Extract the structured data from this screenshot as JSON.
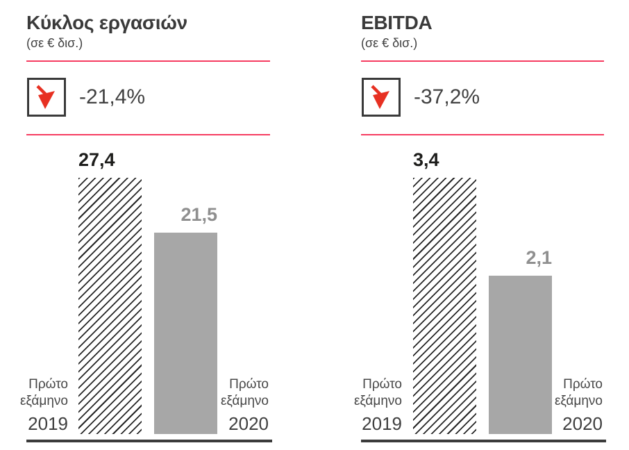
{
  "colors": {
    "accent_pink": "#f63b60",
    "arrow_red": "#e73022",
    "bar_gray": "#a7a7a7",
    "value_dark": "#1d1d1b",
    "value_gray": "#8f8f8f",
    "text_dark": "#3a3a3a",
    "baseline_dark": "#3b3b3b"
  },
  "chart_data": [
    {
      "type": "bar",
      "title": "Κύκλος εργασιών",
      "subtitle": "(σε € δισ.)",
      "change": "-21,4%",
      "categories": [
        "Πρώτο εξάμηνο 2019",
        "Πρώτο εξάμηνο 2020"
      ],
      "category_lines": [
        [
          "Πρώτο",
          "εξάμηνο",
          "2019"
        ],
        [
          "Πρώτο",
          "εξάμηνο",
          "2020"
        ]
      ],
      "values": [
        27.4,
        21.5
      ],
      "value_labels": [
        "27,4",
        "21,5"
      ],
      "patterns": [
        "hatched",
        "solid"
      ],
      "ylim": [
        0,
        27.4
      ],
      "legend": "none",
      "grid": false
    },
    {
      "type": "bar",
      "title": "EBITDA",
      "subtitle": "(σε € δισ.)",
      "change": "-37,2%",
      "categories": [
        "Πρώτο εξάμηνο 2019",
        "Πρώτο εξάμηνο 2020"
      ],
      "category_lines": [
        [
          "Πρώτο",
          "εξάμηνο",
          "2019"
        ],
        [
          "Πρώτο",
          "εξάμηνο",
          "2020"
        ]
      ],
      "values": [
        3.4,
        2.1
      ],
      "value_labels": [
        "3,4",
        "2,1"
      ],
      "patterns": [
        "hatched",
        "solid"
      ],
      "ylim": [
        0,
        3.4
      ],
      "legend": "none",
      "grid": false
    }
  ]
}
